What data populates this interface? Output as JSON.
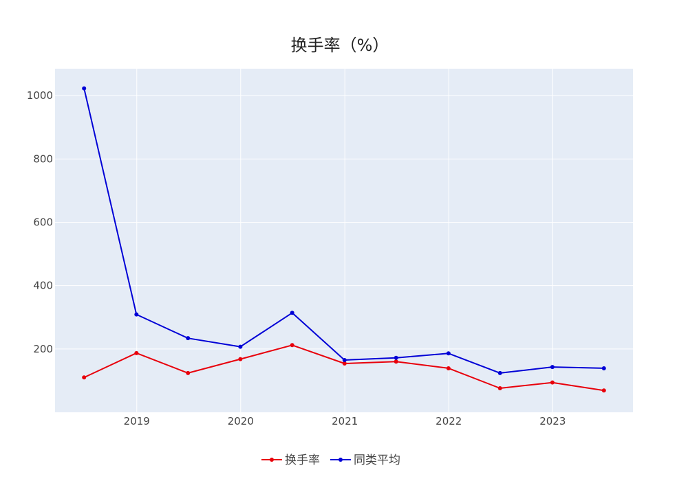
{
  "chart_data": {
    "type": "line",
    "title": "换手率（%）",
    "xlabel": "",
    "ylabel": "",
    "x_tick_labels": [
      "2019",
      "2020",
      "2021",
      "2022",
      "2023"
    ],
    "x_ticks": [
      "2019-01-01",
      "2020-01-01",
      "2021-01-01",
      "2022-01-01",
      "2023-01-01"
    ],
    "x": [
      "2018-06-30",
      "2018-12-31",
      "2019-06-30",
      "2019-12-31",
      "2020-06-30",
      "2020-12-31",
      "2021-06-30",
      "2021-12-31",
      "2022-06-30",
      "2022-12-31",
      "2023-06-30"
    ],
    "xlim": [
      "2018-03-20",
      "2023-10-10"
    ],
    "y_ticks": [
      200,
      400,
      600,
      800,
      1000
    ],
    "ylim": [
      0,
      1085
    ],
    "grid": true,
    "legend_position": "bottom-center",
    "series": [
      {
        "name": "换手率",
        "color": "#e8000b",
        "values": [
          110,
          187,
          124,
          168,
          212,
          154,
          160,
          139,
          76,
          94,
          69
        ]
      },
      {
        "name": "同类平均",
        "color": "#0000d6",
        "values": [
          1023,
          309,
          234,
          207,
          314,
          165,
          172,
          186,
          124,
          143,
          139
        ]
      }
    ]
  },
  "colors": {
    "plot_background": "#e5ecf6",
    "grid": "#ffffff",
    "text": "#444444"
  }
}
